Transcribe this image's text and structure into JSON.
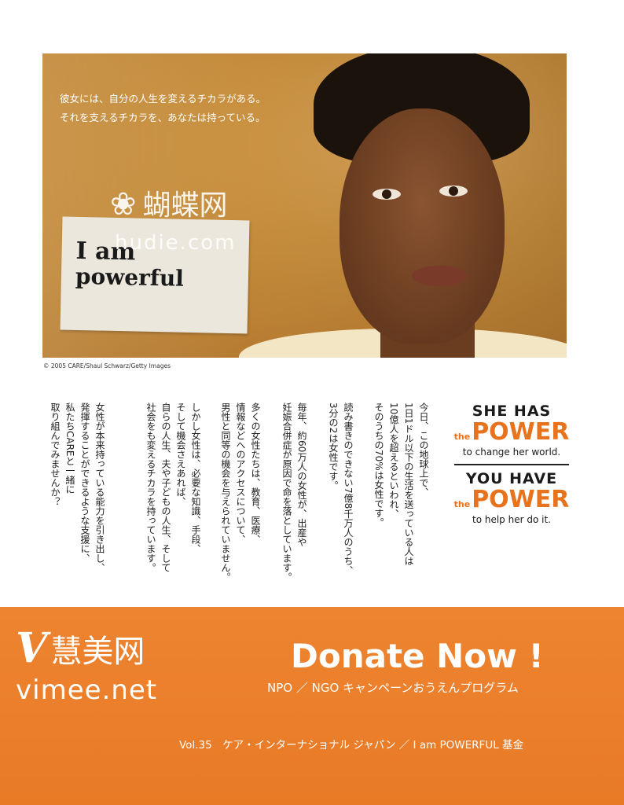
{
  "photo": {
    "caption_line1": "彼女には、自分の人生を変えるチカラがある。",
    "caption_line2": "それを支えるチカラを、あなたは持っている。",
    "note_line1": "I am",
    "note_line2": "powerful",
    "watermark_text": "蝴蝶网",
    "watermark_url": "hudie.com",
    "credit": "© 2005 CARE/Shaul Schwarz/Getty Images"
  },
  "body_text": {
    "col1": "今日、この地球上で、",
    "col2": "1日1ドル以下の生活を送っている人は",
    "col3": "10億人を超えるといわれ、",
    "col4": "そのうちの70%は女性です。",
    "col5": "読み書きのできない7億8千万人のうち、",
    "col6": "3分の2は女性です。",
    "col7": "毎年、約60万人の女性が、出産や",
    "col8": "妊娠合併症が原因で命を落としています。",
    "col9": "多くの女性たちは、教育、医療、",
    "col10": "情報などへのアクセスについて、",
    "col11": "男性と同等の機会を与えられていません。",
    "col12": "しかし女性は、必要な知識、手段、",
    "col13": "そして機会さえあれば、",
    "col14": "自らの人生、夫や子どもの人生、そして",
    "col15": "社会をも変えるチカラを持っています。",
    "col16": "女性が本来持っている能力を引き出し、",
    "col17": "発揮することができるような支援に、",
    "col18": "私たちCAREと一緒に",
    "col19": "取り組んでみませんか？"
  },
  "power_block": {
    "she_has": "SHE HAS",
    "the1": "the",
    "power1": "POWER",
    "sub1": "to change her world.",
    "you_have": "YOU HAVE",
    "the2": "the",
    "power2": "POWER",
    "sub2": "to help her do it.",
    "accent_color": "#e8731d"
  },
  "footer": {
    "watermark_logo": "V",
    "watermark_cn": "慧美网",
    "watermark_url": "vimee.net",
    "donate": "Donate Now !",
    "campaign": "NPO ／ NGO キャンペーンおうえんプログラム",
    "vol": "Vol.35　ケア・インターナショナル ジャパン ／ I am POWERFUL 基金",
    "band_color": "#ec7f2b"
  }
}
